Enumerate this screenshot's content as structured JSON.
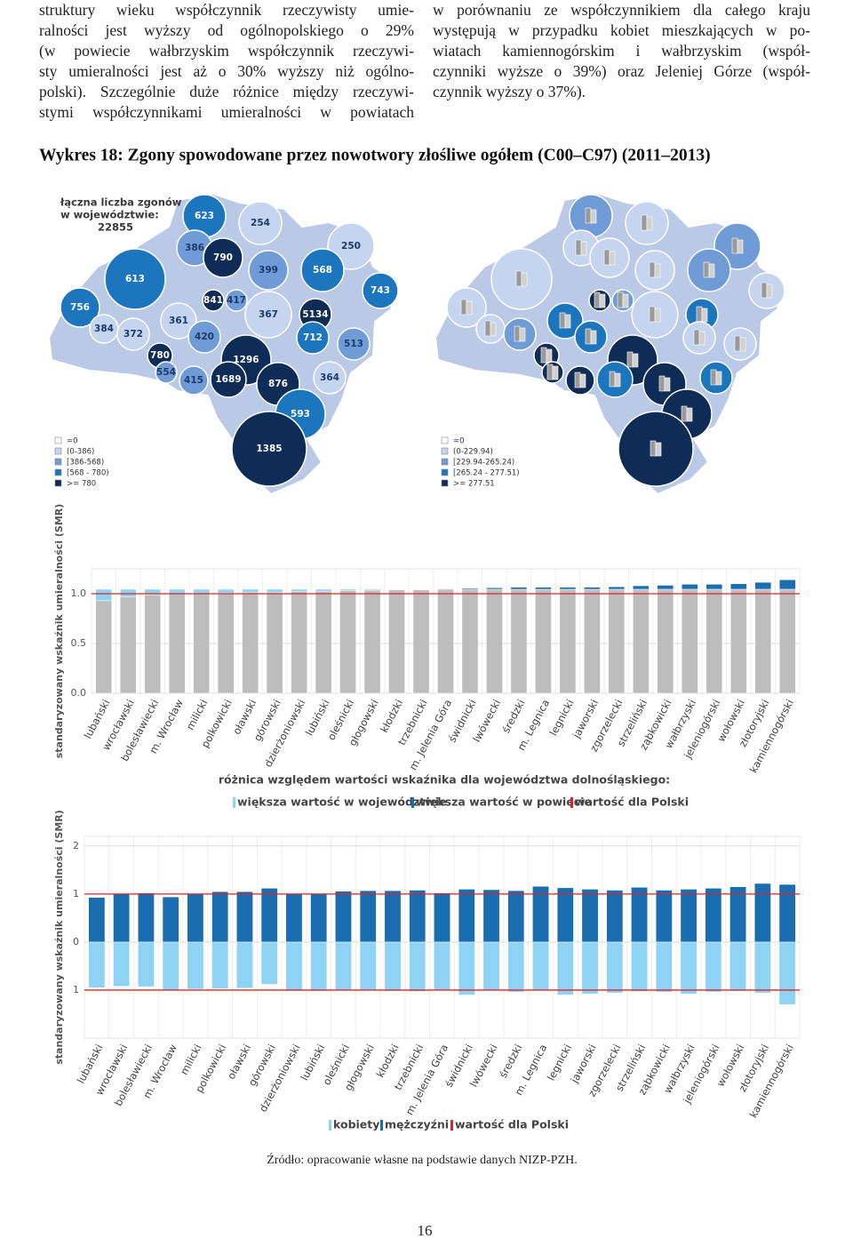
{
  "text": {
    "left": [
      "struktury wieku współczynnik rzeczywisty umie-",
      "ralności jest wyższy od ogólnopolskiego o 29%",
      "(w powiecie wałbrzyskim współczynnik rzeczywi-",
      "sty umieralności jest aż o 30% wyższy niż ogólno-",
      "polski). Szczególnie duże różnice między rzeczywi-",
      "stymi współczynnikami umieralności w powiatach"
    ],
    "right": [
      "w porównaniu ze współczynnikiem dla całego kraju",
      "występują w przypadku kobiet mieszkających w po-",
      "wiatach kamiennogórskim i wałbrzyskim (współ-",
      "czynniki wyższe o 39%) oraz Jeleniej Górze (współ-",
      "czynnik wyższy o 37%)."
    ]
  },
  "figure_title": "Wykres 18: Zgony spowodowane przez nowotwory złośliwe ogółem (C00–C97) (2011–2013)",
  "maps": [
    {
      "title": [
        "łączna liczba zgonów",
        "w województwie:",
        "22855"
      ],
      "legend": [
        {
          "label": "=0",
          "color": "#ffffff"
        },
        {
          "label": "(0-386)",
          "color": "#c5d4ef"
        },
        {
          "label": "[386-568)",
          "color": "#6f9bd6"
        },
        {
          "label": "[568 - 780)",
          "color": "#1b76bd"
        },
        {
          "label": ">= 780",
          "color": "#0f2c56"
        }
      ],
      "regions": [
        {
          "value": 623,
          "color": "#1b76bd"
        },
        {
          "value": 254,
          "color": "#c5d4ef"
        },
        {
          "value": 386,
          "color": "#6f9bd6"
        },
        {
          "value": 790,
          "color": "#0f2c56"
        },
        {
          "value": 250,
          "color": "#c5d4ef"
        },
        {
          "value": 613,
          "color": "#1b76bd"
        },
        {
          "value": 399,
          "color": "#6f9bd6"
        },
        {
          "value": 568,
          "color": "#1b76bd"
        },
        {
          "value": 743,
          "color": "#1b76bd"
        },
        {
          "value": 841,
          "color": "#0f2c56"
        },
        {
          "value": 417,
          "color": "#6f9bd6"
        },
        {
          "value": 756,
          "color": "#1b76bd"
        },
        {
          "value": 361,
          "color": "#c5d4ef"
        },
        {
          "value": 367,
          "color": "#c5d4ef"
        },
        {
          "value": 5134,
          "color": "#0f2c56"
        },
        {
          "value": 384,
          "color": "#c5d4ef"
        },
        {
          "value": 372,
          "color": "#c5d4ef"
        },
        {
          "value": 420,
          "color": "#6f9bd6"
        },
        {
          "value": 712,
          "color": "#1b76bd"
        },
        {
          "value": 513,
          "color": "#6f9bd6"
        },
        {
          "value": 780,
          "color": "#0f2c56"
        },
        {
          "value": 1296,
          "color": "#0f2c56"
        },
        {
          "value": 554,
          "color": "#6f9bd6"
        },
        {
          "value": 415,
          "color": "#6f9bd6"
        },
        {
          "value": 1689,
          "color": "#0f2c56"
        },
        {
          "value": 876,
          "color": "#0f2c56"
        },
        {
          "value": 364,
          "color": "#c5d4ef"
        },
        {
          "value": 593,
          "color": "#1b76bd"
        },
        {
          "value": 1385,
          "color": "#0f2c56"
        }
      ]
    },
    {
      "legend": [
        {
          "label": "=0",
          "color": "#ffffff"
        },
        {
          "label": "(0-229.94)",
          "color": "#c5d4ef"
        },
        {
          "label": "[229.94-265.24)",
          "color": "#6f9bd6"
        },
        {
          "label": "[265.24 - 277.51)",
          "color": "#1b76bd"
        },
        {
          "label": ">= 277.51",
          "color": "#0f2c56"
        }
      ],
      "region_colors": [
        "#6f9bd6",
        "#c5d4ef",
        "#c5d4ef",
        "#c5d4ef",
        "#6f9bd6",
        "#c5d4ef",
        "#c5d4ef",
        "#6f9bd6",
        "#c5d4ef",
        "#0f2c56",
        "#6f9bd6",
        "#c5d4ef",
        "#1b76bd",
        "#c5d4ef",
        "#1b76bd",
        "#c5d4ef",
        "#6f9bd6",
        "#1b76bd",
        "#c5d4ef",
        "#c5d4ef",
        "#0f2c56",
        "#0f2c56",
        "#0f2c56",
        "#0f2c56",
        "#1b76bd",
        "#0f2c56",
        "#1b76bd",
        "#0f2c56",
        "#0f2c56"
      ]
    }
  ],
  "chart_data": [
    {
      "type": "bar",
      "y_label": "standaryzowany wskaźnik umieralności (SMR)",
      "subtitle": "różnica względem wartości wskaźnika dla województwa dolnośląskiego:",
      "categories": [
        "lubański",
        "wrocławski",
        "bolesławiecki",
        "m. Wrocław",
        "milicki",
        "polkowicki",
        "oławski",
        "górowski",
        "dzierżoniowski",
        "lubiński",
        "oleśnicki",
        "głogowski",
        "kłodzki",
        "trzebnicki",
        "m. Jelenia Góra",
        "świdnicki",
        "lwówecki",
        "średzki",
        "m. Legnica",
        "legnicki",
        "jaworski",
        "zgorzelecki",
        "strzeliński",
        "ząbkowicki",
        "wałbrzyski",
        "jeleniogórski",
        "wołowski",
        "złotoryjski",
        "kamiennogórski"
      ],
      "base_color": "#bdbdbd",
      "base_values": [
        0.93,
        0.97,
        0.99,
        1.0,
        1.0,
        1.005,
        1.01,
        1.01,
        1.02,
        1.025,
        1.03,
        1.035,
        1.04,
        1.04,
        1.045,
        1.045,
        1.045,
        1.045,
        1.045,
        1.045,
        1.045,
        1.045,
        1.045,
        1.045,
        1.045,
        1.045,
        1.045,
        1.045,
        1.045
      ],
      "series": [
        {
          "name": "większa wartość w województwie",
          "color": "#8fd3f4",
          "values": [
            0.115,
            0.075,
            0.055,
            0.045,
            0.045,
            0.04,
            0.035,
            0.035,
            0.025,
            0.02,
            0.015,
            0.01,
            0.005,
            0.005,
            0,
            0,
            0,
            0,
            0,
            0,
            0,
            0,
            0,
            0,
            0,
            0,
            0,
            0,
            0
          ]
        },
        {
          "name": "większa wartość w powiecie",
          "color": "#1a6eb0",
          "values": [
            0,
            0,
            0,
            0,
            0,
            0,
            0,
            0,
            0,
            0,
            0,
            0,
            0,
            0,
            0.005,
            0.01,
            0.015,
            0.02,
            0.02,
            0.02,
            0.02,
            0.025,
            0.035,
            0.04,
            0.05,
            0.05,
            0.055,
            0.07,
            0.095
          ]
        }
      ],
      "reference": {
        "name": "wartość dla Polski",
        "color": "#d9252b",
        "values": [
          1
        ]
      },
      "ylim": [
        0,
        1.25
      ],
      "yticks": [
        {
          "value": 0,
          "label": "0.0"
        },
        {
          "value": 0.5,
          "label": "0.5"
        },
        {
          "value": 1,
          "label": "1.0"
        }
      ],
      "grid": true
    },
    {
      "type": "bar",
      "y_label": "standaryzowany wskaźnik umieralności (SMR)",
      "categories": [
        "lubański",
        "wrocławski",
        "bolesławiecki",
        "m. Wrocław",
        "milicki",
        "polkowicki",
        "oławski",
        "górowski",
        "dzierżoniowski",
        "lubiński",
        "oleśnicki",
        "głogowski",
        "kłodzki",
        "trzebnicki",
        "m. Jelenia Góra",
        "świdnicki",
        "lwówecki",
        "średzki",
        "m. Legnica",
        "legnicki",
        "jaworski",
        "zgorzelecki",
        "strzeliński",
        "ząbkowicki",
        "wałbrzyski",
        "jeleniogórski",
        "wołowski",
        "złotoryjski",
        "kamiennogórski"
      ],
      "series": [
        {
          "name": "kobiety",
          "color": "#8fd3f4",
          "values": [
            -0.95,
            -0.92,
            -0.93,
            -1.0,
            -0.98,
            -0.97,
            -0.96,
            -0.88,
            -1.02,
            -1.02,
            -1.01,
            -1.0,
            -1.02,
            -1.03,
            -1.01,
            -1.1,
            -1.0,
            -1.04,
            -1.0,
            -1.1,
            -1.08,
            -1.06,
            -1.03,
            -1.04,
            -1.08,
            -1.04,
            -1.02,
            -1.06,
            -1.3
          ]
        },
        {
          "name": "mężczyźni",
          "color": "#1a6eb0",
          "values": [
            0.93,
            1.0,
            1.02,
            0.94,
            1.0,
            1.05,
            1.05,
            1.12,
            1.0,
            1.0,
            1.06,
            1.07,
            1.07,
            1.08,
            1.02,
            1.1,
            1.09,
            1.07,
            1.16,
            1.13,
            1.1,
            1.08,
            1.14,
            1.08,
            1.1,
            1.12,
            1.15,
            1.22,
            1.2
          ]
        }
      ],
      "reference": {
        "name": "wartość dla Polski",
        "color": "#d9252b",
        "values": [
          1,
          -1
        ]
      },
      "ylim": [
        -2,
        2.2
      ],
      "yticks": [
        2,
        1,
        0,
        {
          "value": -1,
          "label": "1"
        }
      ],
      "grid": true
    }
  ],
  "source": "Źródło: opracowanie własne na podstawie danych NIZP-PZH.",
  "page_number": "16"
}
